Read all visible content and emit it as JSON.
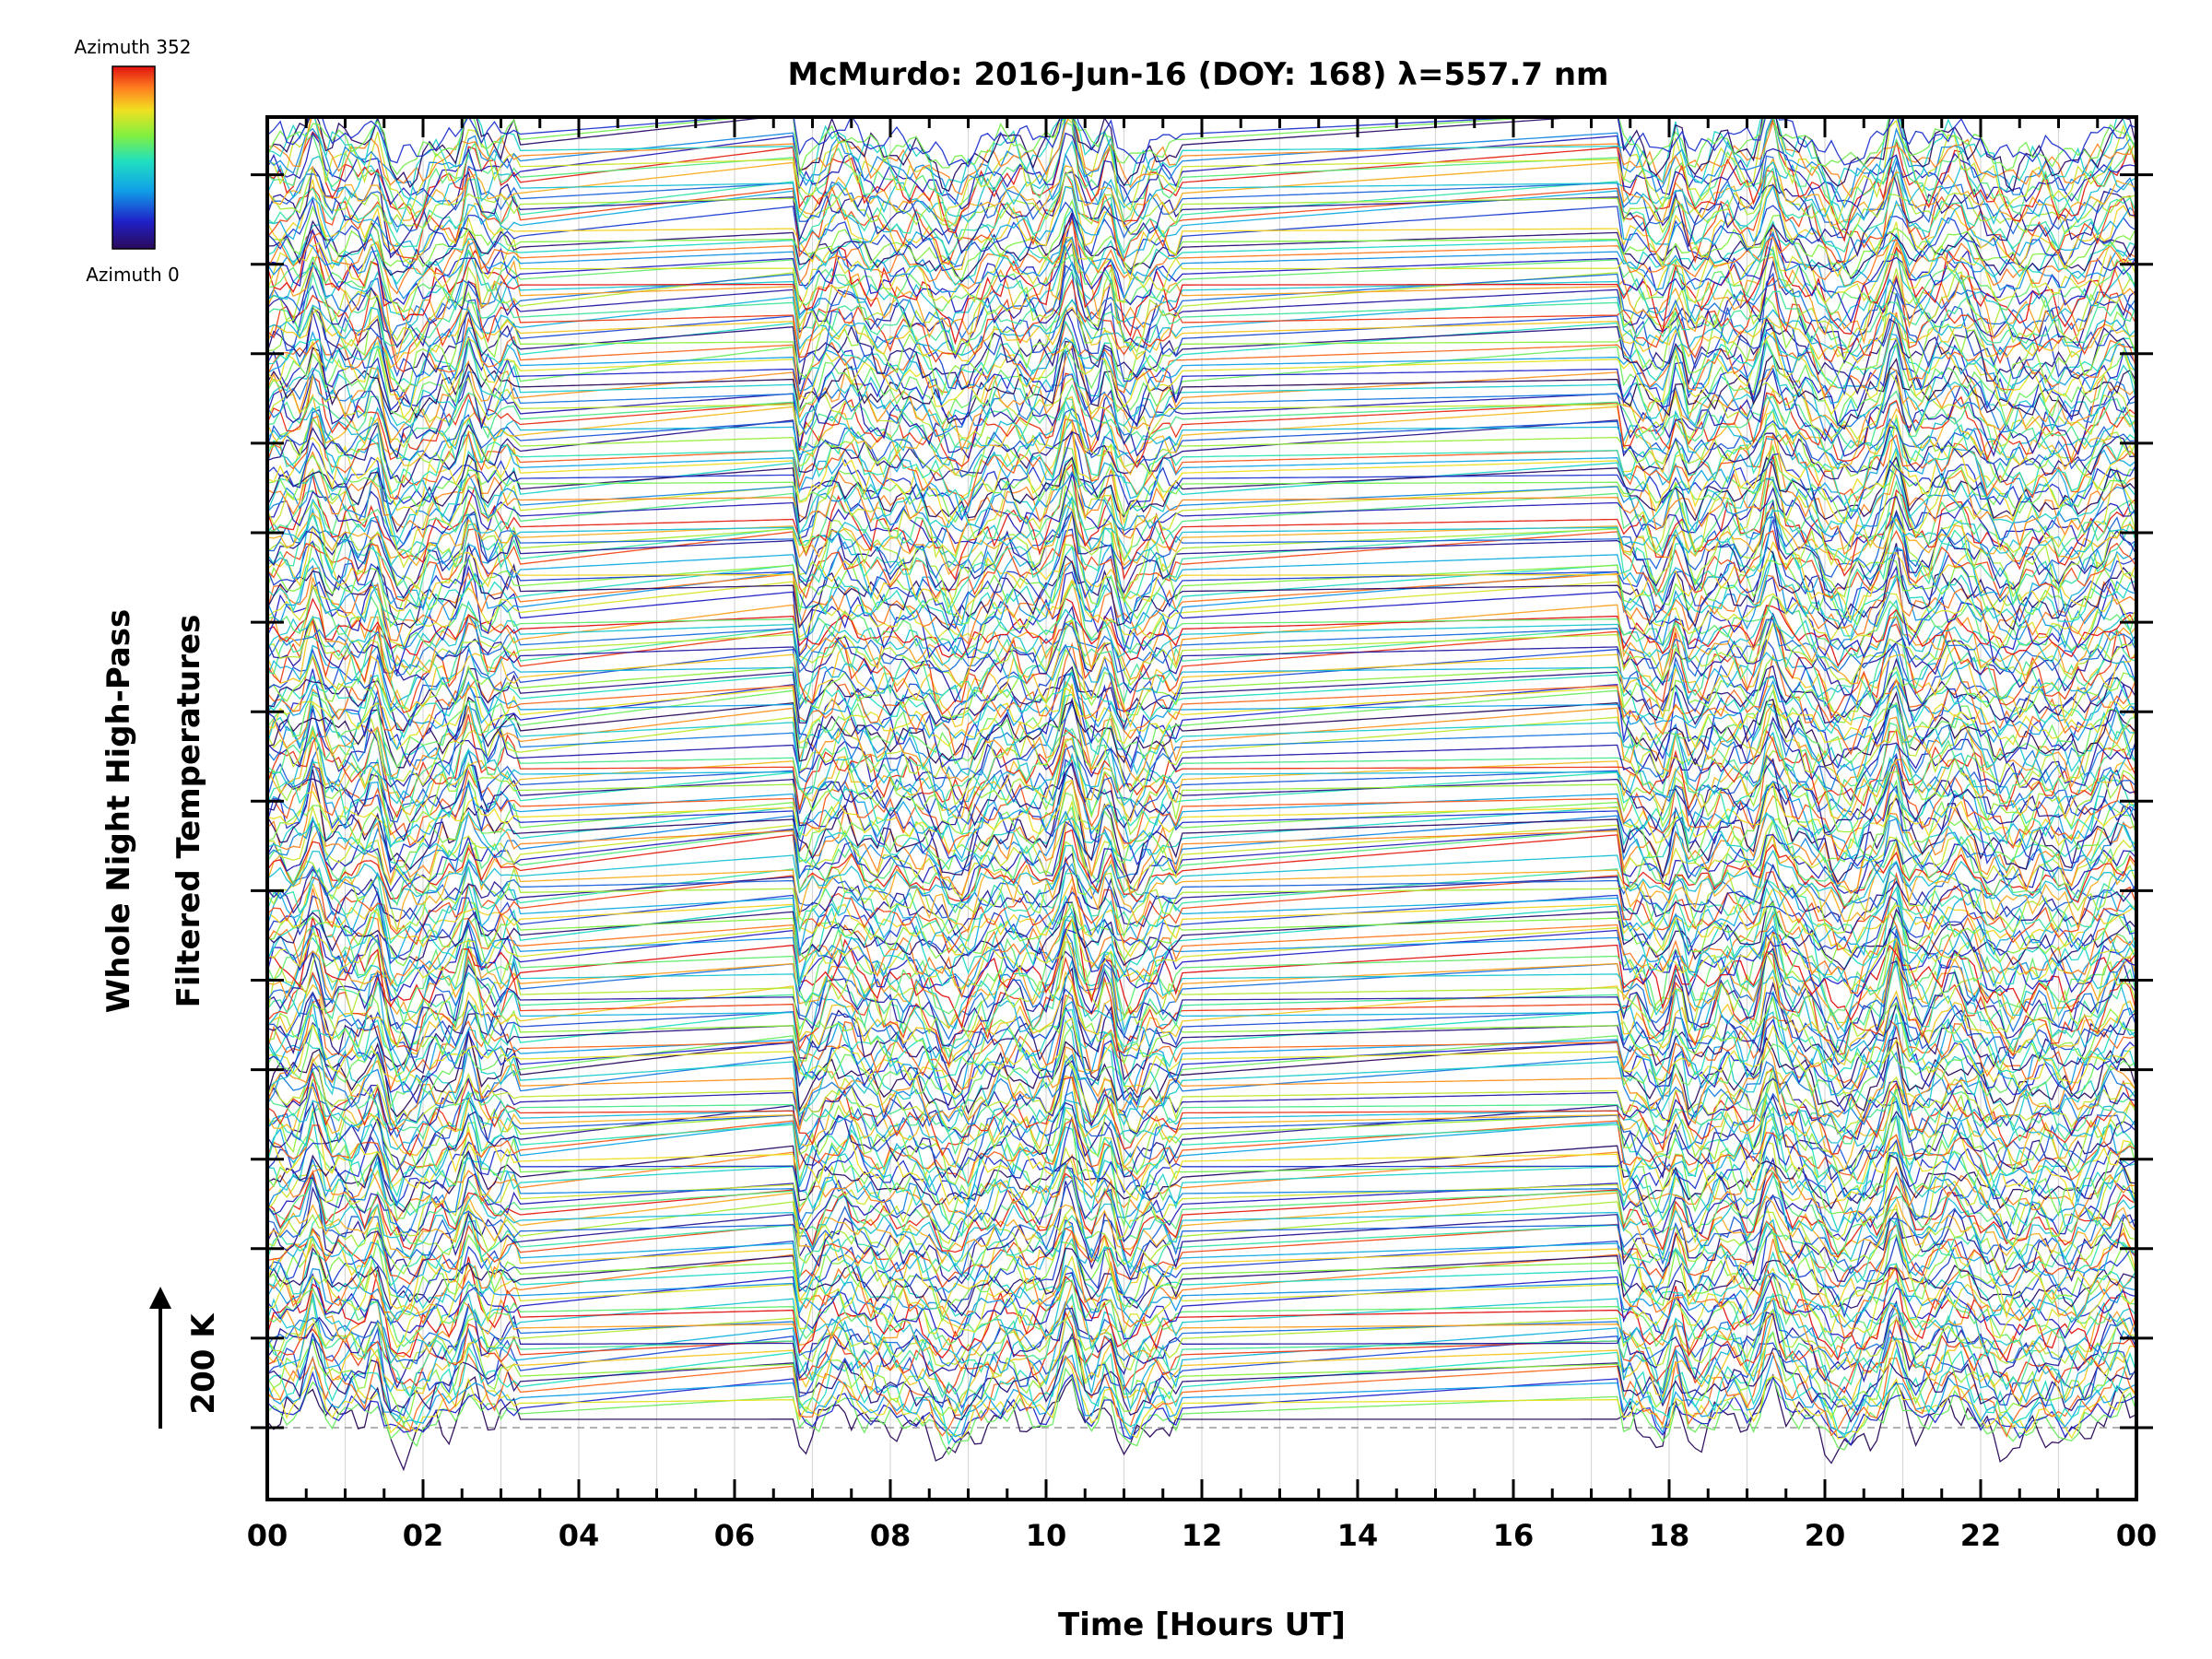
{
  "chart_data": {
    "type": "line",
    "title": "McMurdo: 2016-Jun-16 (DOY: 168) λ=557.7 nm",
    "xlabel": "Time [Hours UT]",
    "ylabel_line1": "Whole Night High-Pass",
    "ylabel_line2": "Filtered Temperatures",
    "scale_label": "200 K",
    "xlim": [
      0,
      24
    ],
    "x_tick_labels": [
      "00",
      "02",
      "04",
      "06",
      "08",
      "10",
      "12",
      "14",
      "16",
      "18",
      "20",
      "22",
      "00"
    ],
    "grid": true,
    "legend": {
      "type": "colorbar",
      "placement": "top-left",
      "top_label": "Azimuth 352",
      "bottom_label": "Azimuth 0",
      "colormap": "rainbow",
      "color_stops": [
        "#2a0a5a",
        "#2020c8",
        "#10a0e8",
        "#20e0c0",
        "#80f040",
        "#f0e020",
        "#ff8020",
        "#e01010"
      ]
    },
    "series_description": "Stacked high-pass filtered temperature traces, one per azimuth (0–352), colored by azimuth",
    "gap_intervals_hours": [
      [
        3.2,
        6.8
      ],
      [
        11.7,
        17.4
      ]
    ],
    "common_peaks_hours": [
      0.6,
      1.4,
      2.6,
      10.3,
      10.8,
      18.1,
      19.3,
      20.9
    ]
  },
  "colors": {
    "axis": "#000000",
    "grid": "#d8d8d8",
    "baseline": "#999999"
  }
}
